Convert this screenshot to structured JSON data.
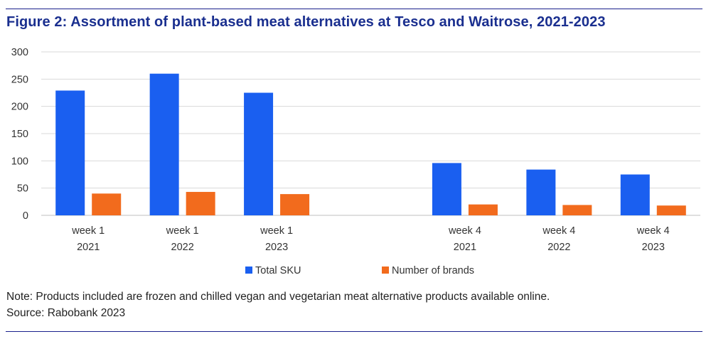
{
  "figure": {
    "title": "Figure 2: Assortment of plant-based meat alternatives at Tesco and Waitrose, 2021-2023",
    "note": "Note: Products included are frozen and chilled vegan and vegetarian meat alternative products available online.",
    "source": "Source: Rabobank 2023"
  },
  "colors": {
    "total_sku": "#1a5ff0",
    "brands": "#f26b1d",
    "rule": "#1a1f8c",
    "title": "#1a2f8f",
    "grid": "#d9d9d9"
  },
  "chart_data": {
    "type": "bar",
    "title": "Figure 2: Assortment of plant-based meat alternatives at Tesco and Waitrose, 2021-2023",
    "xlabel": "",
    "ylabel": "",
    "ylim": [
      0,
      300
    ],
    "yticks": [
      0,
      50,
      100,
      150,
      200,
      250,
      300
    ],
    "grid": true,
    "legend_position": "bottom-center",
    "categories": [
      [
        "week 1",
        "2021"
      ],
      [
        "week 1",
        "2022"
      ],
      [
        "week 1",
        "2023"
      ],
      [
        "",
        ""
      ],
      [
        "week 4",
        "2021"
      ],
      [
        "week 4",
        "2022"
      ],
      [
        "week 4",
        "2023"
      ]
    ],
    "series": [
      {
        "name": "Total SKU",
        "color": "#1a5ff0",
        "values": [
          229,
          260,
          225,
          null,
          96,
          84,
          75
        ]
      },
      {
        "name": "Number of brands",
        "color": "#f26b1d",
        "values": [
          40,
          43,
          39,
          null,
          20,
          19,
          18
        ]
      }
    ]
  }
}
